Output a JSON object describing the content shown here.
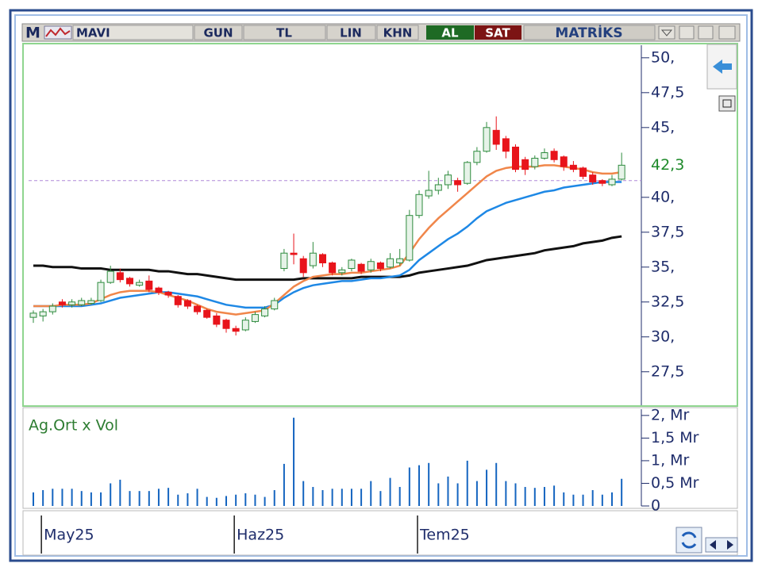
{
  "toolbar": {
    "logo": "M",
    "symbol": "MAVI",
    "period": "GUN",
    "currency": "TL",
    "scale": "LIN",
    "mode": "KHN",
    "buy": "AL",
    "sell": "SAT",
    "brand": "MATRİKS"
  },
  "chart_data": [
    {
      "type": "candlestick",
      "categories": [
        null,
        "May25",
        null,
        null,
        null,
        null,
        null,
        null,
        null,
        null,
        null,
        null,
        null,
        null,
        null,
        null,
        null,
        null,
        null,
        null,
        null,
        "Haz25",
        null,
        null,
        null,
        null,
        null,
        null,
        null,
        null,
        null,
        null,
        null,
        null,
        null,
        null,
        null,
        null,
        null,
        null,
        "Tem25",
        null,
        null,
        null,
        null,
        null,
        null,
        null,
        null,
        null,
        null,
        null,
        null,
        null,
        null,
        null,
        null,
        null,
        null,
        null,
        null,
        null
      ],
      "open": [
        31.4,
        31.5,
        31.8,
        32.5,
        32.3,
        32.3,
        32.4,
        32.6,
        33.9,
        34.6,
        34.2,
        33.7,
        34.0,
        33.5,
        33.2,
        32.9,
        32.6,
        32.2,
        31.9,
        31.5,
        31.2,
        30.6,
        30.5,
        31.1,
        31.5,
        32.0,
        34.9,
        36.0,
        35.6,
        35.1,
        35.9,
        35.3,
        34.6,
        34.9,
        35.2,
        34.8,
        35.3,
        35.0,
        35.3,
        35.5,
        38.7,
        40.1,
        40.5,
        40.9,
        41.2,
        41.0,
        42.5,
        43.3,
        44.8,
        44.2,
        43.6,
        42.7,
        42.2,
        42.8,
        43.3,
        42.9,
        42.3,
        42.1,
        41.6,
        41.2,
        40.9,
        41.3
      ],
      "high": [
        31.9,
        32.0,
        32.4,
        32.7,
        32.7,
        32.8,
        32.8,
        34.1,
        35.1,
        34.9,
        34.3,
        34.1,
        34.4,
        33.6,
        33.3,
        33.0,
        32.7,
        32.3,
        32.0,
        31.7,
        31.3,
        30.8,
        31.4,
        31.8,
        32.2,
        32.8,
        36.3,
        37.4,
        35.8,
        36.8,
        36.0,
        35.4,
        35.0,
        35.6,
        35.3,
        35.6,
        35.4,
        36.0,
        36.3,
        39.1,
        40.5,
        41.9,
        41.4,
        41.9,
        41.4,
        42.6,
        43.6,
        45.4,
        45.8,
        44.4,
        43.8,
        42.9,
        43.0,
        43.5,
        43.5,
        43.0,
        42.6,
        42.2,
        41.8,
        41.3,
        41.6,
        43.2
      ],
      "low": [
        31.0,
        31.1,
        31.6,
        32.1,
        32.1,
        32.2,
        32.3,
        32.5,
        33.8,
        33.9,
        33.6,
        33.6,
        33.2,
        33.0,
        32.8,
        32.1,
        32.0,
        31.6,
        31.3,
        30.7,
        30.3,
        30.1,
        30.4,
        31.0,
        31.4,
        31.9,
        34.7,
        35.2,
        34.3,
        34.9,
        35.0,
        34.4,
        34.4,
        34.7,
        34.5,
        34.6,
        34.7,
        34.9,
        35.1,
        35.4,
        38.5,
        39.9,
        40.2,
        40.6,
        40.4,
        40.9,
        42.3,
        43.2,
        43.4,
        42.8,
        41.8,
        41.6,
        42.0,
        42.7,
        42.5,
        41.9,
        41.8,
        41.3,
        40.9,
        40.8,
        40.8,
        41.2
      ],
      "close": [
        31.7,
        31.8,
        32.2,
        32.3,
        32.5,
        32.6,
        32.6,
        33.9,
        34.7,
        34.1,
        33.8,
        33.9,
        33.4,
        33.2,
        33.0,
        32.3,
        32.2,
        31.8,
        31.4,
        30.9,
        30.6,
        30.4,
        31.2,
        31.6,
        32.0,
        32.6,
        36.0,
        35.9,
        34.6,
        36.0,
        35.3,
        34.6,
        34.8,
        35.5,
        34.7,
        35.4,
        34.9,
        35.6,
        35.6,
        38.7,
        40.2,
        40.5,
        40.9,
        41.6,
        40.9,
        42.5,
        43.3,
        45.0,
        43.8,
        43.3,
        42.0,
        42.0,
        42.8,
        43.2,
        42.7,
        42.2,
        42.0,
        41.5,
        41.1,
        41.0,
        41.3,
        42.3
      ],
      "up_color": "#2e8b3e",
      "down_color": "#e8141b",
      "lines": [
        {
          "color": "#111111",
          "values": [
            35.1,
            35.1,
            35.0,
            35.0,
            35.0,
            34.9,
            34.9,
            34.9,
            34.8,
            34.8,
            34.8,
            34.8,
            34.8,
            34.7,
            34.7,
            34.6,
            34.5,
            34.5,
            34.4,
            34.3,
            34.2,
            34.1,
            34.1,
            34.1,
            34.1,
            34.1,
            34.1,
            34.1,
            34.2,
            34.2,
            34.2,
            34.2,
            34.2,
            34.2,
            34.3,
            34.3,
            34.3,
            34.3,
            34.3,
            34.4,
            34.6,
            34.7,
            34.8,
            34.9,
            35.0,
            35.1,
            35.3,
            35.5,
            35.6,
            35.7,
            35.8,
            35.9,
            36.0,
            36.2,
            36.3,
            36.4,
            36.5,
            36.7,
            36.8,
            36.9,
            37.1,
            37.2
          ]
        },
        {
          "color": "#1e88e5",
          "values": [
            32.2,
            32.2,
            32.2,
            32.2,
            32.2,
            32.2,
            32.3,
            32.4,
            32.6,
            32.8,
            32.9,
            33.0,
            33.1,
            33.2,
            33.2,
            33.1,
            33.0,
            32.9,
            32.7,
            32.5,
            32.3,
            32.2,
            32.1,
            32.1,
            32.1,
            32.3,
            32.8,
            33.2,
            33.5,
            33.7,
            33.8,
            33.9,
            34.0,
            34.0,
            34.1,
            34.2,
            34.2,
            34.3,
            34.4,
            34.8,
            35.5,
            36.0,
            36.5,
            37.0,
            37.4,
            37.9,
            38.5,
            39.0,
            39.3,
            39.6,
            39.8,
            40.0,
            40.2,
            40.4,
            40.5,
            40.7,
            40.8,
            40.9,
            41.0,
            41.1,
            41.1,
            41.1
          ]
        },
        {
          "color": "#f0864a",
          "values": [
            32.2,
            32.2,
            32.2,
            32.3,
            32.3,
            32.3,
            32.4,
            32.7,
            33.0,
            33.2,
            33.3,
            33.3,
            33.3,
            33.2,
            33.0,
            32.8,
            32.6,
            32.3,
            32.0,
            31.8,
            31.7,
            31.6,
            31.7,
            31.8,
            31.9,
            32.4,
            33.0,
            33.6,
            34.0,
            34.3,
            34.4,
            34.5,
            34.5,
            34.6,
            34.6,
            34.7,
            34.8,
            34.9,
            35.1,
            36.0,
            37.0,
            37.8,
            38.5,
            39.1,
            39.7,
            40.3,
            40.9,
            41.5,
            41.9,
            42.1,
            42.2,
            42.2,
            42.2,
            42.3,
            42.3,
            42.2,
            42.1,
            42.0,
            41.8,
            41.7,
            41.7,
            41.8
          ]
        }
      ],
      "reference_line": 41.2,
      "last_price": {
        "value": 42.3,
        "label": "42,3"
      },
      "ylim": [
        25.1,
        50.9
      ],
      "yticks": [
        {
          "value": 50,
          "label": "50,"
        },
        {
          "value": 47.5,
          "label": "47,5"
        },
        {
          "value": 45,
          "label": "45,"
        },
        {
          "value": 40,
          "label": "40,"
        },
        {
          "value": 37.5,
          "label": "37,5"
        },
        {
          "value": 35,
          "label": "35,"
        },
        {
          "value": 32.5,
          "label": "32,5"
        },
        {
          "value": 30,
          "label": "30,"
        },
        {
          "value": 27.5,
          "label": "27,5"
        }
      ]
    },
    {
      "type": "bar",
      "title": "Ag.Ort x Vol",
      "color": "#1565c0",
      "values": [
        0.3,
        0.35,
        0.38,
        0.38,
        0.38,
        0.33,
        0.3,
        0.3,
        0.5,
        0.58,
        0.33,
        0.33,
        0.33,
        0.38,
        0.4,
        0.25,
        0.28,
        0.38,
        0.2,
        0.18,
        0.22,
        0.25,
        0.28,
        0.25,
        0.2,
        0.35,
        0.93,
        1.95,
        0.55,
        0.42,
        0.35,
        0.38,
        0.38,
        0.38,
        0.38,
        0.55,
        0.33,
        0.62,
        0.42,
        0.85,
        0.9,
        0.95,
        0.5,
        0.65,
        0.5,
        1.0,
        0.55,
        0.8,
        0.95,
        0.55,
        0.5,
        0.42,
        0.4,
        0.42,
        0.45,
        0.3,
        0.25,
        0.25,
        0.35,
        0.25,
        0.3,
        0.6
      ],
      "ylim": [
        0,
        2.12
      ],
      "yticks": [
        {
          "value": 2,
          "label": "2, Mr"
        },
        {
          "value": 1.5,
          "label": "1,5 Mr"
        },
        {
          "value": 1,
          "label": "1, Mr"
        },
        {
          "value": 0.5,
          "label": "0,5 Mr"
        },
        0
      ]
    }
  ]
}
